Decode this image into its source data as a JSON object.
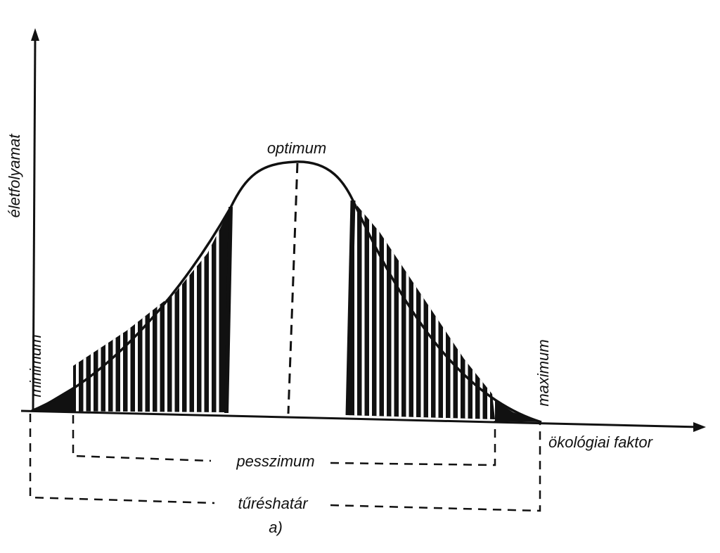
{
  "diagram": {
    "y_axis_label": "életfolyamat",
    "x_axis_label": "ökológiai faktor",
    "peak_label": "optimum",
    "left_end_label": "minimum",
    "right_end_label": "maximum",
    "inner_range_label": "pesszimum",
    "outer_range_label": "tűréshatár",
    "caption": "a)"
  },
  "colors": {
    "ink": "#111111",
    "paper": "#ffffff"
  }
}
